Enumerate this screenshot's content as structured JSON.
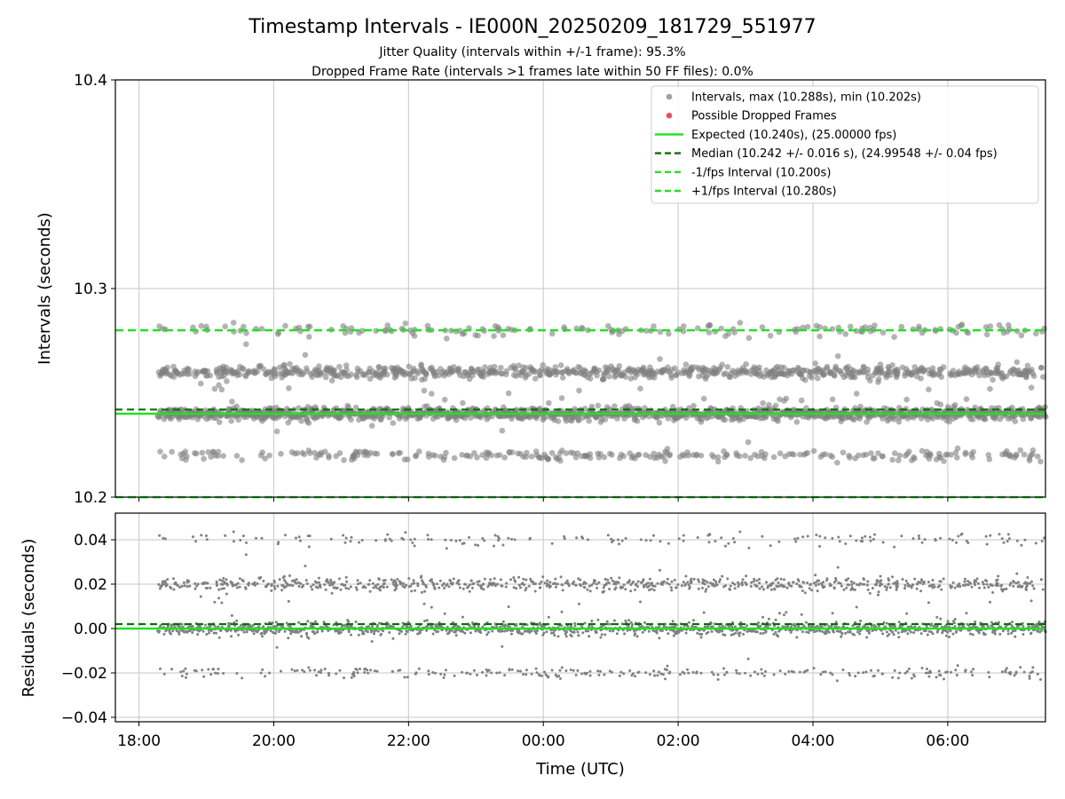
{
  "figure": {
    "title": "Timestamp Intervals - IE000N_20250209_181729_551977",
    "subtitle_1": "Jitter Quality (intervals within +/-1 frame): 95.3%",
    "subtitle_2": "Dropped Frame Rate (intervals >1 frames late within 50 FF files): 0.0%"
  },
  "colors": {
    "points": "#808080",
    "dropped": "#e8505b",
    "expected": "#22e022",
    "median": "#0a6e0a",
    "fps_band": "#22e022",
    "grid": "#d0d0d0"
  },
  "chart_data": [
    {
      "type": "scatter",
      "ylabel": "Intervals (seconds)",
      "ylim": [
        10.2,
        10.4
      ],
      "yticks": [
        "10.2",
        "10.3",
        "10.4"
      ],
      "x_range": [
        "2025-02-09 17:39",
        "2025-02-10 07:27"
      ],
      "grid": true,
      "legend_position": "top-right",
      "legend": [
        {
          "label": "Intervals, max (10.288s), min (10.202s)",
          "kind": "point",
          "color": "#a0a0a0"
        },
        {
          "label": "Possible Dropped Frames",
          "kind": "point",
          "color": "#e8505b"
        },
        {
          "label": "Expected (10.240s), (25.00000 fps)",
          "kind": "solid",
          "color": "#22e022"
        },
        {
          "label": "Median (10.242 +/- 0.016 s), (24.99548 +/- 0.04 fps)",
          "kind": "dashed",
          "color": "#0a6e0a"
        },
        {
          "label": "-1/fps Interval (10.200s)",
          "kind": "dashed",
          "color": "#22e022"
        },
        {
          "label": "+1/fps Interval (10.280s)",
          "kind": "dashed",
          "color": "#22e022"
        }
      ],
      "reference_lines": {
        "expected": 10.24,
        "median": 10.242,
        "minus_1fps": 10.2,
        "plus_1fps": 10.28
      },
      "data_range": {
        "start": "2025-02-09 18:17",
        "end": "2025-02-10 07:27",
        "max": 10.288,
        "min": 10.202
      },
      "series_levels": [
        {
          "value": 10.24,
          "share": 0.5,
          "spread": 0.0015
        },
        {
          "value": 10.26,
          "share": 0.3,
          "spread": 0.0015
        },
        {
          "value": 10.22,
          "share": 0.11,
          "spread": 0.0012
        },
        {
          "value": 10.28,
          "share": 0.06,
          "spread": 0.0015
        },
        {
          "value": 10.25,
          "share": 0.03,
          "spread": 0.01
        }
      ]
    },
    {
      "type": "scatter",
      "ylabel": "Residuals (seconds)",
      "xlabel": "Time (UTC)",
      "ylim": [
        -0.042,
        0.052
      ],
      "yticks": [
        "−0.04",
        "−0.02",
        "0.00",
        "0.02",
        "0.04"
      ],
      "ytick_values": [
        -0.04,
        -0.02,
        0.0,
        0.02,
        0.04
      ],
      "xticks": [
        "18:00",
        "20:00",
        "22:00",
        "00:00",
        "02:00",
        "04:00",
        "06:00"
      ],
      "grid": true,
      "reference_lines": {
        "zero": 0.0,
        "median_offset": 0.002
      },
      "series_levels": [
        {
          "value": 0.0,
          "share": 0.5,
          "spread": 0.0015
        },
        {
          "value": 0.02,
          "share": 0.3,
          "spread": 0.0015
        },
        {
          "value": -0.02,
          "share": 0.11,
          "spread": 0.0012
        },
        {
          "value": 0.04,
          "share": 0.06,
          "spread": 0.0015
        },
        {
          "value": 0.01,
          "share": 0.03,
          "spread": 0.01
        }
      ]
    }
  ]
}
